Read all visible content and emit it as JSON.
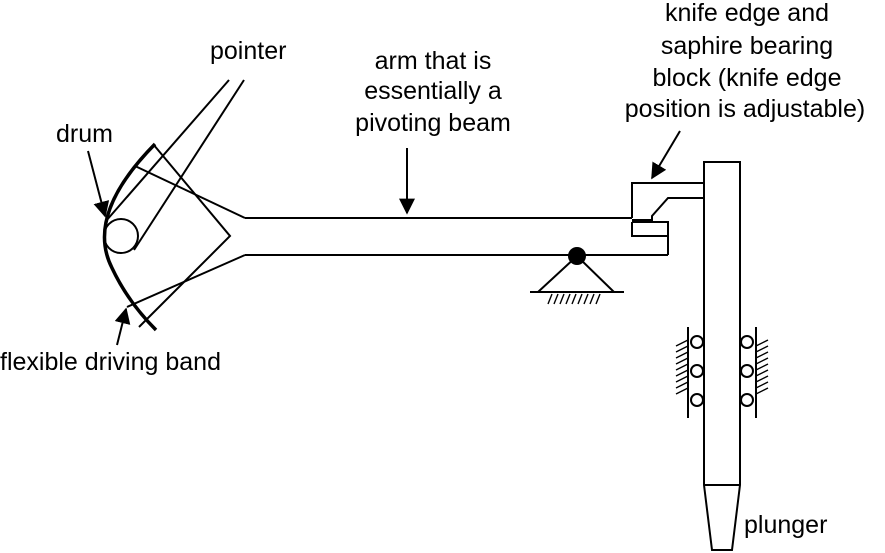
{
  "labels": {
    "pointer": "pointer",
    "drum": "drum",
    "arm_line1": "arm that is",
    "arm_line2": "essentially a",
    "arm_line3": "pivoting beam",
    "knife_line1": "knife edge and",
    "knife_line2": "saphire bearing",
    "knife_line3": "block (knife edge",
    "knife_line4": "position is adjustable)",
    "band": "flexible driving band",
    "plunger": "plunger"
  },
  "colors": {
    "ink": "#000000",
    "background": "#ffffff"
  }
}
